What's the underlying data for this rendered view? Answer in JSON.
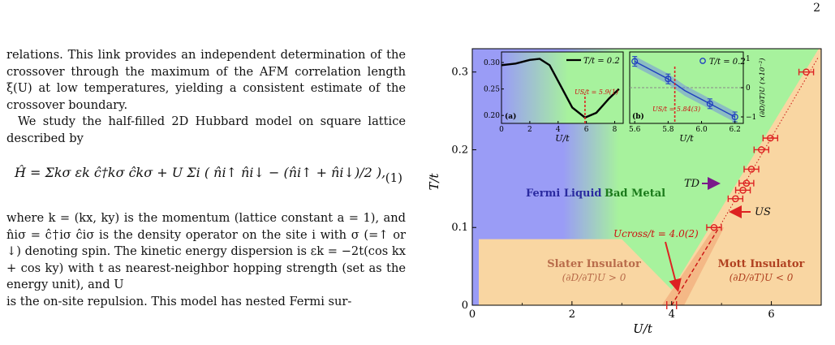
{
  "page_number": "2",
  "body": {
    "para1": "relations. This link provides an independent determination of the crossover through the maximum of the AFM correlation length ξ(U) at low temperatures, yielding a consistent estimate of the crossover boundary.",
    "para2": "We study the half-filled 2D Hubbard model on square lattice described by",
    "equation": "Ĥ = Σkσ εk ĉ†kσ ĉkσ + U Σi ( n̂i↑ n̂i↓ − (n̂i↑ + n̂i↓)/2 ),",
    "equation_number": "(1)",
    "para3": "where k = (kx, ky) is the momentum (lattice constant a = 1), and n̂iσ = ĉ†iσ ĉiσ is the density operator on the site i with σ (=↑ or ↓) denoting spin. The kinetic energy dispersion is εk = −2t(cos kx + cos ky) with t as nearest-neighbor hopping strength (set as the energy unit), and U",
    "para3_last": "is the on-site repulsion. This model has nested Fermi sur-"
  },
  "figure": {
    "chart_data": {
      "type": "scatter",
      "xlabel": "U/t",
      "ylabel": "T/t",
      "xlim": [
        0,
        7
      ],
      "ylim": [
        0,
        0.33
      ],
      "xticks": [
        "0",
        "2",
        "4",
        "6"
      ],
      "yticks": [
        "0",
        "0.1",
        "0.2",
        "0.3"
      ],
      "series": [
        {
          "name": "U_S",
          "x": [
            4.85,
            5.28,
            5.43,
            5.5,
            5.6,
            5.8,
            5.98,
            6.7
          ],
          "y": [
            0.1,
            0.137,
            0.148,
            0.157,
            0.175,
            0.2,
            0.215,
            0.3
          ]
        }
      ],
      "crossover_point": {
        "x": 4.0,
        "y": 0
      },
      "regions": [
        "Fermi Liquid",
        "Bad Metal",
        "Slater Insulator",
        "Mott Insulator"
      ],
      "region_conditions": {
        "slater": "(∂D/∂T)U > 0",
        "mott": "(∂D/∂T)U < 0"
      },
      "annotations": {
        "ucross": "Ucross/t = 4.0(2)",
        "td": "TD",
        "us": "US"
      },
      "insets": [
        {
          "label": "(a)",
          "type": "line",
          "legend": "T/t = 0.2",
          "xlabel": "U/t",
          "xticks": [
            "0",
            "2",
            "4",
            "6",
            "8"
          ],
          "yticks": [
            "0.20",
            "0.25",
            "0.30"
          ],
          "x": [
            0,
            1,
            2,
            2.7,
            3.4,
            4.2,
            5,
            5.9,
            6.7,
            7.6,
            8.3
          ],
          "y": [
            0.295,
            0.298,
            0.305,
            0.307,
            0.295,
            0.255,
            0.215,
            0.196,
            0.205,
            0.232,
            0.25
          ],
          "marker_label": "US/t = 5.9(1)"
        },
        {
          "label": "(b)",
          "type": "line",
          "legend": "T/t = 0.2",
          "xlabel": "U/t",
          "ylabel": "(∂D/∂T)U (×10⁻²)",
          "xticks": [
            "5.6",
            "5.8",
            "6.0",
            "6.2"
          ],
          "yticks": [
            "1",
            "0",
            "−1"
          ],
          "x": [
            5.6,
            5.8,
            5.9,
            6.05,
            6.2
          ],
          "y": [
            0.9,
            0.3,
            -0.1,
            -0.55,
            -1.0
          ],
          "marker_label": "US/t = 5.84(3)"
        }
      ]
    },
    "colors": {
      "fermi_liquid": "#9a9cf6",
      "bad_metal": "#a7f29d",
      "insulator": "#f9d6a2",
      "marker": "#dd2222",
      "td_arrow": "#7a1a8a",
      "line_blue": "#1f3fbf"
    }
  }
}
